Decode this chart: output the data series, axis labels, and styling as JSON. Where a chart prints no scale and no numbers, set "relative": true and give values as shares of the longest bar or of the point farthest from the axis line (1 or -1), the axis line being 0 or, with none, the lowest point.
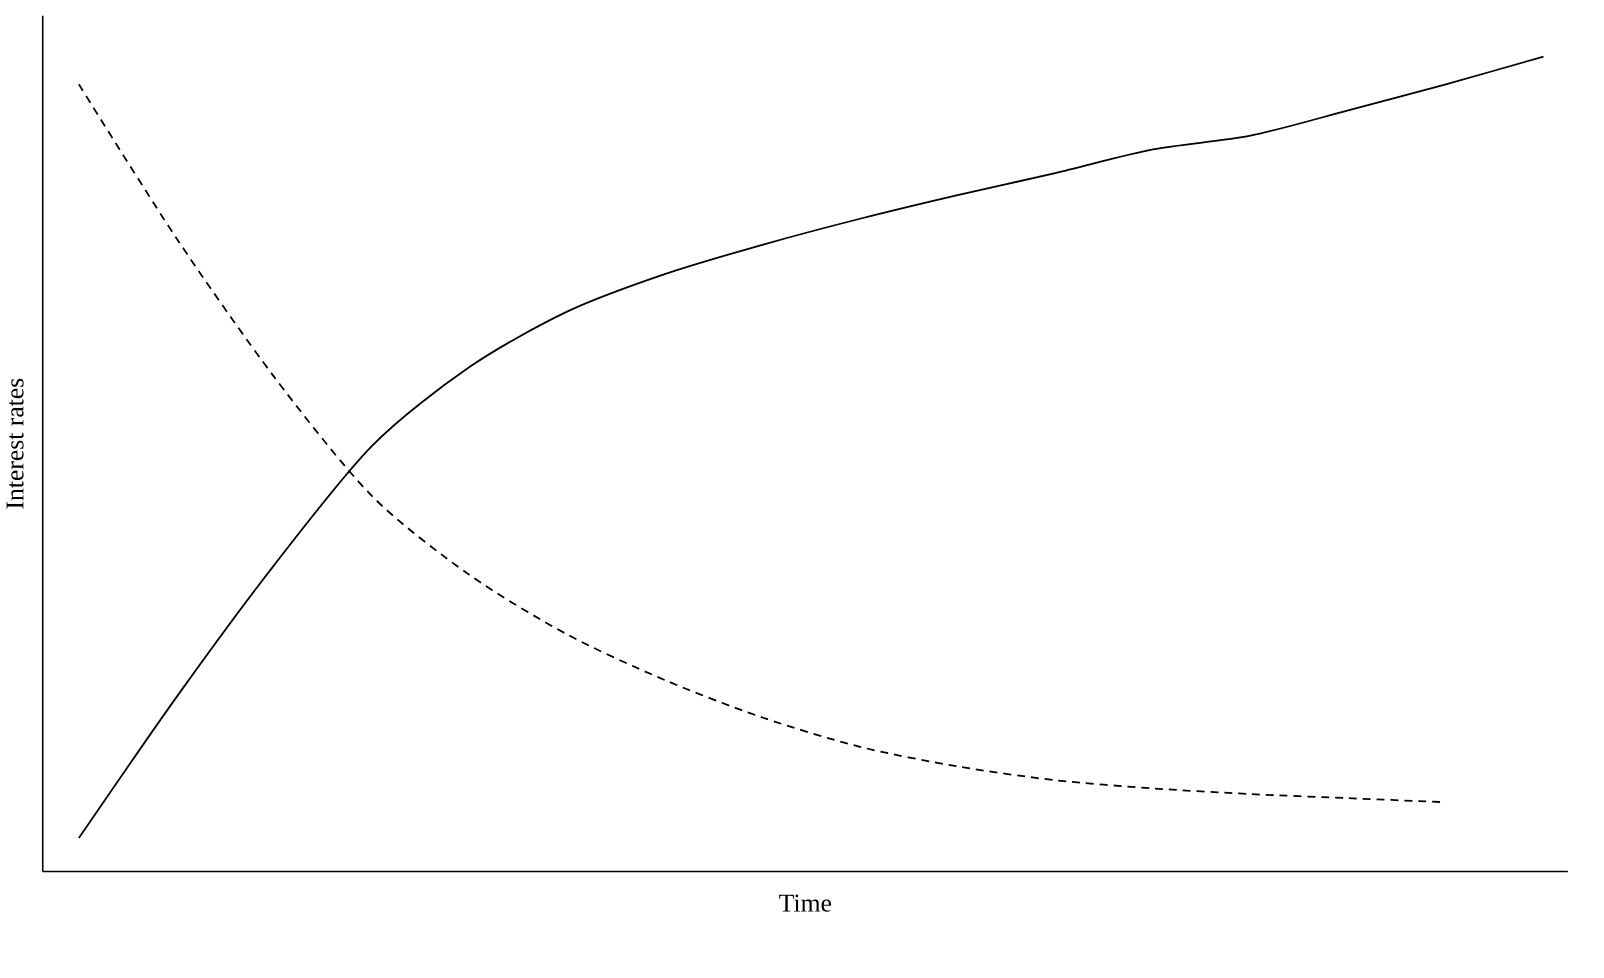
{
  "chart_data": {
    "type": "line",
    "relative": true,
    "xlabel": "Time",
    "ylabel": "Interest rates",
    "marker": "none",
    "categories": [
      null,
      null,
      null,
      null,
      null,
      null,
      null,
      null,
      null,
      null,
      null,
      null,
      null,
      null,
      null,
      null
    ],
    "series": [
      {
        "color": "#000000",
        "line_style": "solid",
        "values": [
          0.041,
          0.214,
          0.376,
          0.522,
          0.619,
          0.687,
          0.733,
          0.769,
          0.801,
          0.83,
          0.857,
          0.886,
          0.903,
          0.934,
          0.966,
          1
        ]
      },
      {
        "color": "#000000",
        "line_style": "dashed",
        "values": [
          0.966,
          0.777,
          0.607,
          0.461,
          0.364,
          0.291,
          0.235,
          0.189,
          0.153,
          0.129,
          0.112,
          0.102,
          0.095,
          0.09,
          0.085,
          null
        ]
      }
    ]
  }
}
